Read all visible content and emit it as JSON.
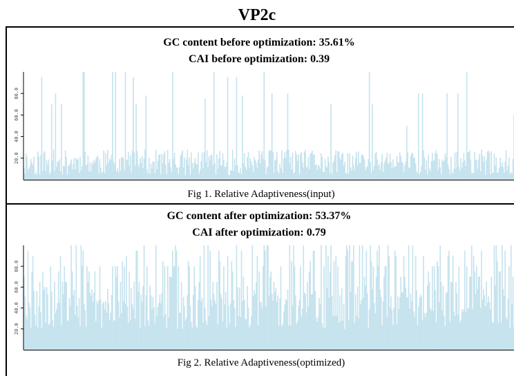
{
  "page": {
    "title": "VP2c"
  },
  "panels": [
    {
      "gc_text": "GC content before optimization: 35.61%",
      "cai_text": "CAI before optimization: 0.39",
      "caption": "Fig 1. Relative Adaptiveness(input)"
    },
    {
      "gc_text": "GC content after optimization: 53.37%",
      "cai_text": "CAI after optimization: 0.79",
      "caption": "Fig 2. Relative Adaptiveness(optimized)"
    }
  ],
  "colors": {
    "bar": "#c6e3ee",
    "axis": "#000000"
  },
  "chart_data": [
    {
      "type": "bar",
      "title": "",
      "xlabel": "",
      "ylabel": "",
      "ylim": [
        0,
        100
      ],
      "yticks": [
        20.0,
        40.0,
        60.0,
        80.0
      ],
      "ytick_labels": [
        "20.0",
        "40.0",
        "60.0",
        "80.0"
      ],
      "grid": false,
      "legend": "none",
      "bar_count": 500,
      "baseline_range": [
        4,
        28
      ],
      "spike_values": [
        100,
        100,
        100,
        95,
        95,
        85,
        80,
        80,
        80,
        78,
        75,
        70,
        60,
        50,
        50,
        45,
        40
      ],
      "spike_rate": 0.07,
      "seed": 11
    },
    {
      "type": "bar",
      "title": "",
      "xlabel": "",
      "ylabel": "",
      "ylim": [
        0,
        100
      ],
      "yticks": [
        20.0,
        40.0,
        60.0,
        80.0
      ],
      "ytick_labels": [
        "20.0",
        "40.0",
        "60.0",
        "80.0"
      ],
      "grid": false,
      "legend": "none",
      "bar_count": 500,
      "baseline_range": [
        20,
        62
      ],
      "spike_values": [
        100,
        100,
        95,
        90,
        85,
        80,
        80,
        80,
        75,
        70,
        65
      ],
      "spike_rate": 0.35,
      "seed": 29
    }
  ]
}
